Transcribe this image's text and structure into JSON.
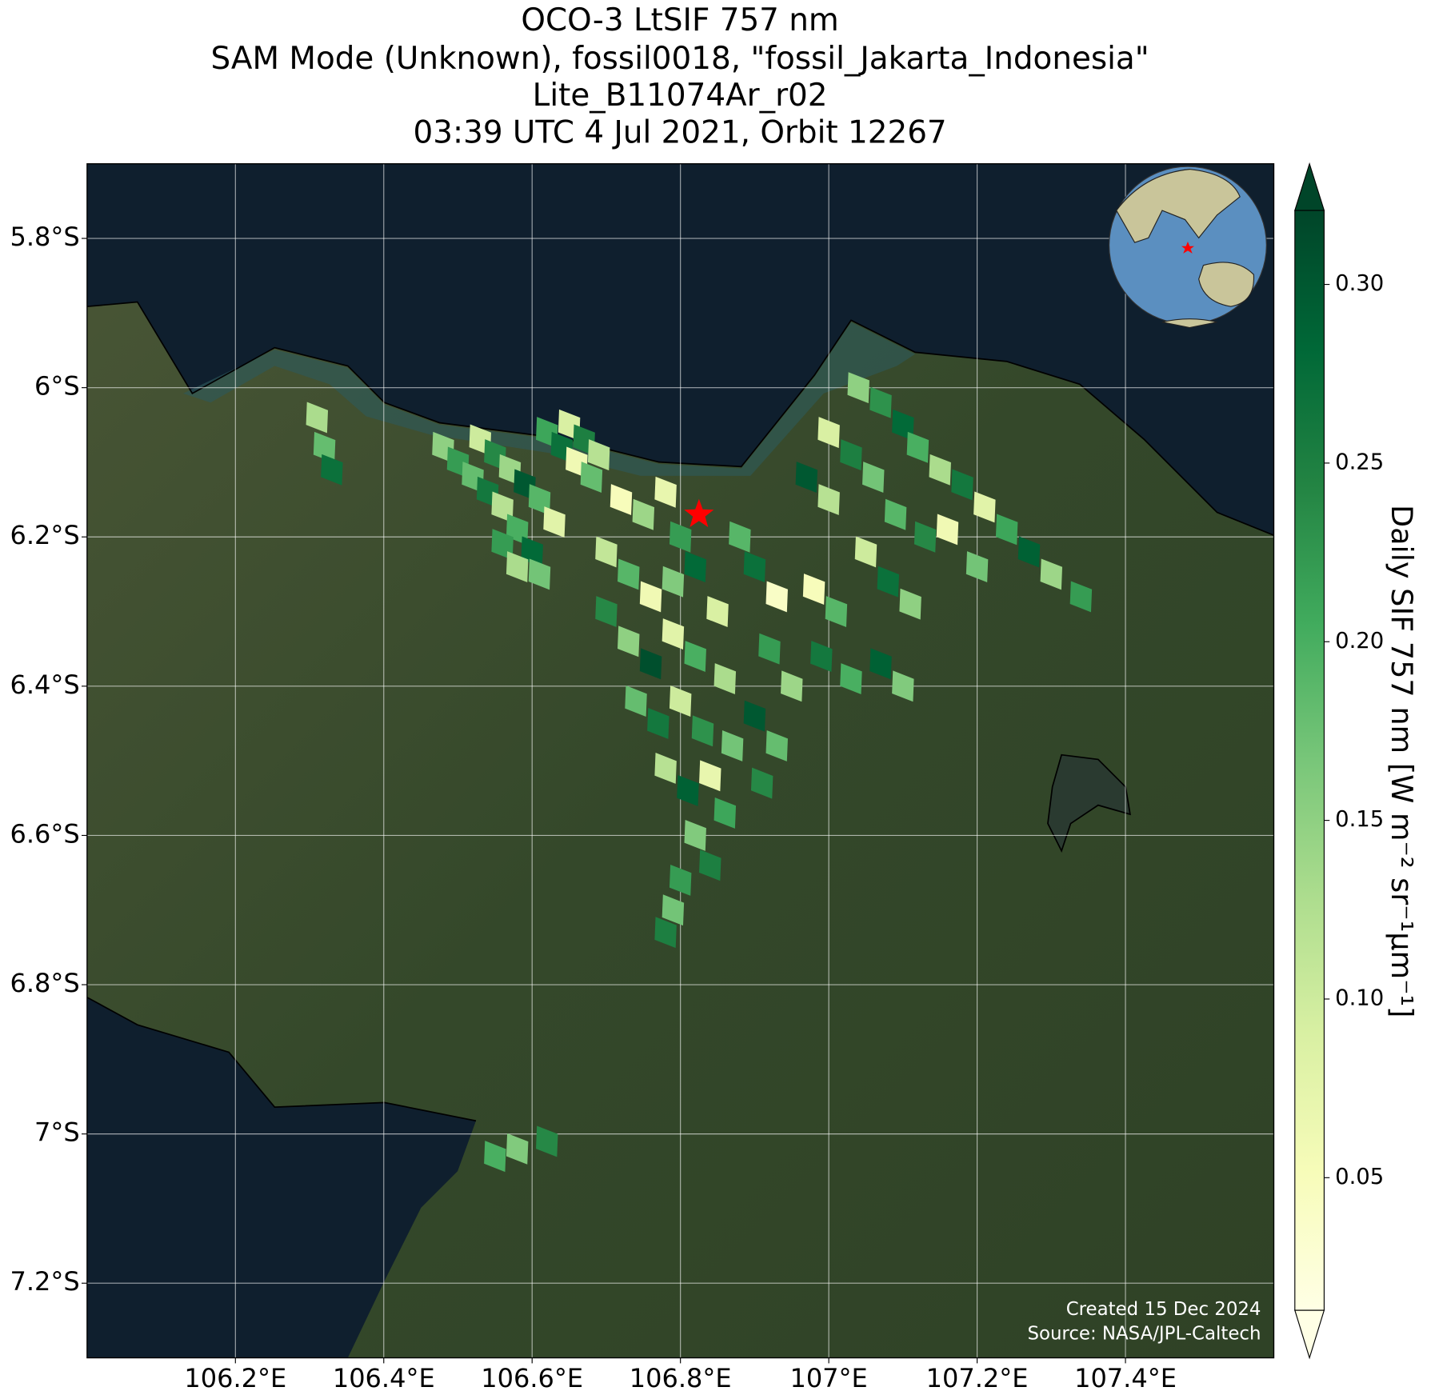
{
  "chart_data": {
    "type": "map",
    "title": [
      "OCO-3 LtSIF 757 nm",
      "SAM Mode (Unknown), fossil0018, \"fossil_Jakarta_Indonesia\"",
      "Lite_B11074Ar_r02",
      "03:39 UTC 4 Jul 2021, Orbit 12267"
    ],
    "xlim": [
      106.0,
      107.6
    ],
    "ylim": [
      -7.3,
      -5.7
    ],
    "xticks": [
      {
        "value": 106.2,
        "label": "106.2°E"
      },
      {
        "value": 106.4,
        "label": "106.4°E"
      },
      {
        "value": 106.6,
        "label": "106.6°E"
      },
      {
        "value": 106.8,
        "label": "106.8°E"
      },
      {
        "value": 107.0,
        "label": "107°E"
      },
      {
        "value": 107.2,
        "label": "107.2°E"
      },
      {
        "value": 107.4,
        "label": "107.4°E"
      }
    ],
    "yticks": [
      {
        "value": -5.8,
        "label": "5.8°S"
      },
      {
        "value": -6.0,
        "label": "6°S"
      },
      {
        "value": -6.2,
        "label": "6.2°S"
      },
      {
        "value": -6.4,
        "label": "6.4°S"
      },
      {
        "value": -6.6,
        "label": "6.6°S"
      },
      {
        "value": -6.8,
        "label": "6.8°S"
      },
      {
        "value": -7.0,
        "label": "7°S"
      },
      {
        "value": -7.2,
        "label": "7.2°S"
      }
    ],
    "grid": true,
    "colorbar_label": "Daily SIF 757 nm [W m⁻² sr⁻¹μm⁻¹]",
    "clim": [
      0.0129,
      0.3207
    ],
    "cticks": [
      0.05,
      {
        "value": 0.1,
        "label": "0.10"
      },
      0.15,
      {
        "value": 0.2,
        "label": "0.20"
      },
      0.25,
      {
        "value": 0.3,
        "label": "0.30"
      }
    ],
    "colormap": [
      "#ffffe5",
      "#f7fcb9",
      "#d9f0a3",
      "#addd8e",
      "#78c679",
      "#41ab5d",
      "#238443",
      "#006837",
      "#004529"
    ],
    "site": {
      "lon": 106.825,
      "lat": -6.17,
      "color": "#ff0000"
    },
    "annotations": [
      "Created 15 Dec 2024",
      "Source: NASA/JPL-Caltech"
    ],
    "footprints": [
      [
        106.48,
        -6.08,
        0.15
      ],
      [
        106.5,
        -6.1,
        0.22
      ],
      [
        106.52,
        -6.12,
        0.18
      ],
      [
        106.54,
        -6.14,
        0.26
      ],
      [
        106.56,
        -6.16,
        0.12
      ],
      [
        106.58,
        -6.19,
        0.2
      ],
      [
        106.6,
        -6.22,
        0.28
      ],
      [
        106.61,
        -6.25,
        0.17
      ],
      [
        106.53,
        -6.07,
        0.1
      ],
      [
        106.55,
        -6.09,
        0.24
      ],
      [
        106.57,
        -6.11,
        0.14
      ],
      [
        106.59,
        -6.13,
        0.3
      ],
      [
        106.61,
        -6.15,
        0.19
      ],
      [
        106.63,
        -6.18,
        0.08
      ],
      [
        106.56,
        -6.21,
        0.22
      ],
      [
        106.58,
        -6.24,
        0.13
      ],
      [
        106.62,
        -6.06,
        0.21
      ],
      [
        106.64,
        -6.08,
        0.27
      ],
      [
        106.66,
        -6.1,
        0.06
      ],
      [
        106.68,
        -6.12,
        0.18
      ],
      [
        106.65,
        -6.05,
        0.09
      ],
      [
        106.67,
        -6.07,
        0.25
      ],
      [
        106.69,
        -6.09,
        0.12
      ],
      [
        106.72,
        -6.15,
        0.05
      ],
      [
        106.75,
        -6.17,
        0.14
      ],
      [
        106.78,
        -6.14,
        0.07
      ],
      [
        106.8,
        -6.2,
        0.22
      ],
      [
        106.7,
        -6.22,
        0.11
      ],
      [
        106.73,
        -6.25,
        0.19
      ],
      [
        106.76,
        -6.28,
        0.06
      ],
      [
        106.79,
        -6.26,
        0.16
      ],
      [
        106.82,
        -6.24,
        0.28
      ],
      [
        106.85,
        -6.3,
        0.09
      ],
      [
        106.7,
        -6.3,
        0.24
      ],
      [
        106.73,
        -6.34,
        0.15
      ],
      [
        106.76,
        -6.37,
        0.31
      ],
      [
        106.79,
        -6.33,
        0.08
      ],
      [
        106.82,
        -6.36,
        0.2
      ],
      [
        106.86,
        -6.39,
        0.13
      ],
      [
        106.74,
        -6.42,
        0.18
      ],
      [
        106.77,
        -6.45,
        0.26
      ],
      [
        106.8,
        -6.42,
        0.1
      ],
      [
        106.83,
        -6.46,
        0.23
      ],
      [
        106.87,
        -6.48,
        0.17
      ],
      [
        106.78,
        -6.51,
        0.12
      ],
      [
        106.81,
        -6.54,
        0.29
      ],
      [
        106.84,
        -6.52,
        0.07
      ],
      [
        106.86,
        -6.57,
        0.21
      ],
      [
        106.82,
        -6.6,
        0.16
      ],
      [
        106.84,
        -6.64,
        0.25
      ],
      [
        106.88,
        -6.2,
        0.19
      ],
      [
        106.9,
        -6.24,
        0.27
      ],
      [
        106.93,
        -6.28,
        0.04
      ],
      [
        106.92,
        -6.35,
        0.22
      ],
      [
        106.95,
        -6.4,
        0.14
      ],
      [
        106.9,
        -6.44,
        0.3
      ],
      [
        106.93,
        -6.48,
        0.18
      ],
      [
        106.91,
        -6.53,
        0.24
      ],
      [
        107.04,
        -6.0,
        0.15
      ],
      [
        107.07,
        -6.02,
        0.23
      ],
      [
        107.1,
        -6.05,
        0.28
      ],
      [
        107.0,
        -6.06,
        0.09
      ],
      [
        107.03,
        -6.09,
        0.25
      ],
      [
        107.06,
        -6.12,
        0.17
      ],
      [
        107.12,
        -6.08,
        0.2
      ],
      [
        107.15,
        -6.11,
        0.13
      ],
      [
        107.18,
        -6.13,
        0.26
      ],
      [
        107.21,
        -6.16,
        0.08
      ],
      [
        106.97,
        -6.12,
        0.3
      ],
      [
        107.0,
        -6.15,
        0.12
      ],
      [
        107.09,
        -6.17,
        0.19
      ],
      [
        107.13,
        -6.2,
        0.24
      ],
      [
        107.16,
        -6.19,
        0.06
      ],
      [
        107.24,
        -6.19,
        0.21
      ],
      [
        107.27,
        -6.22,
        0.29
      ],
      [
        107.3,
        -6.25,
        0.14
      ],
      [
        107.34,
        -6.28,
        0.22
      ],
      [
        107.2,
        -6.24,
        0.17
      ],
      [
        107.05,
        -6.22,
        0.1
      ],
      [
        107.08,
        -6.26,
        0.27
      ],
      [
        107.11,
        -6.29,
        0.15
      ],
      [
        106.98,
        -6.27,
        0.05
      ],
      [
        107.01,
        -6.3,
        0.19
      ],
      [
        106.99,
        -6.36,
        0.26
      ],
      [
        107.03,
        -6.39,
        0.2
      ],
      [
        107.07,
        -6.37,
        0.29
      ],
      [
        107.1,
        -6.4,
        0.16
      ],
      [
        106.31,
        -6.04,
        0.13
      ],
      [
        106.32,
        -6.08,
        0.18
      ],
      [
        106.33,
        -6.11,
        0.27
      ],
      [
        106.8,
        -6.66,
        0.22
      ],
      [
        106.79,
        -6.7,
        0.17
      ],
      [
        106.78,
        -6.73,
        0.25
      ],
      [
        106.55,
        -7.03,
        0.2
      ],
      [
        106.58,
        -7.02,
        0.16
      ],
      [
        106.62,
        -7.01,
        0.24
      ]
    ]
  }
}
